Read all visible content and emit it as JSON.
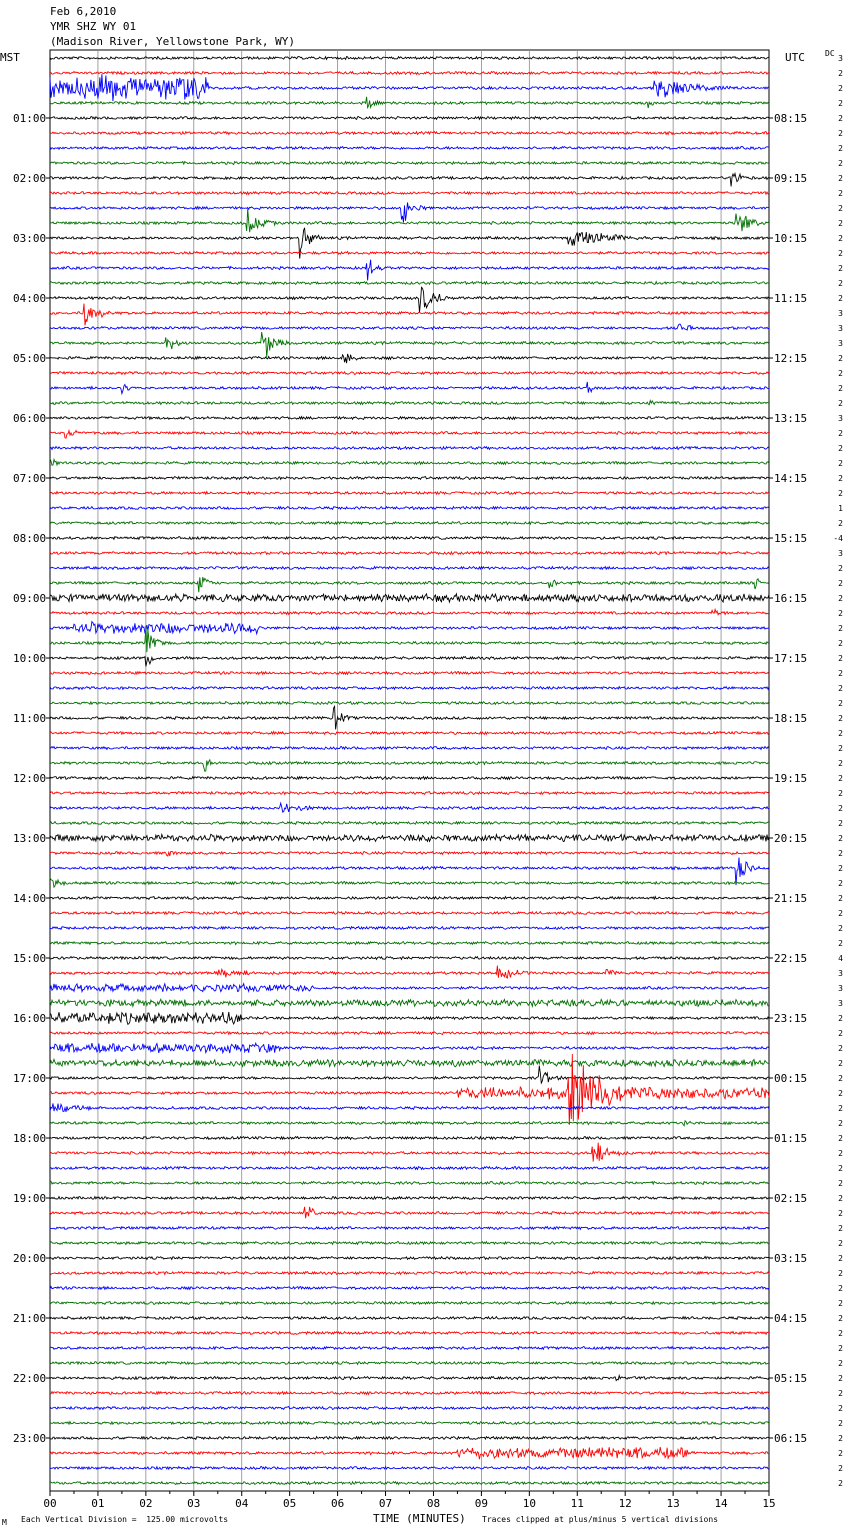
{
  "header": {
    "date": "Feb 6,2010",
    "station": "YMR SHZ WY 01",
    "location": "(Madison River, Yellowstone Park, WY)"
  },
  "labels": {
    "left_zone": "MST",
    "right_zone": "UTC",
    "dc_label": "DC",
    "x_axis_title": "TIME (MINUTES)",
    "scale_note": "Each Vertical Division =  125.00 microvolts",
    "clip_note": "Traces clipped at plus/minus 5 vertical divisions",
    "corner_mark": "M"
  },
  "chart_data": {
    "type": "line",
    "title": "YMR SHZ WY 01",
    "xlabel": "TIME (MINUTES)",
    "xlim": [
      0,
      15
    ],
    "x_ticks": [
      "00",
      "01",
      "02",
      "03",
      "04",
      "05",
      "06",
      "07",
      "08",
      "09",
      "10",
      "11",
      "12",
      "13",
      "14",
      "15"
    ],
    "trace_interval_minutes": 15,
    "trace_count": 96,
    "trace_colors": [
      "#000000",
      "#ff0000",
      "#0000ff",
      "#007000"
    ],
    "grid": true,
    "mst_labels": [
      "01:00",
      "02:00",
      "03:00",
      "04:00",
      "05:00",
      "06:00",
      "07:00",
      "08:00",
      "09:00",
      "10:00",
      "11:00",
      "12:00",
      "13:00",
      "14:00",
      "15:00",
      "16:00",
      "17:00",
      "18:00",
      "19:00",
      "20:00",
      "21:00",
      "22:00",
      "23:00"
    ],
    "utc_labels": [
      "08:15",
      "09:15",
      "10:15",
      "11:15",
      "12:15",
      "13:15",
      "14:15",
      "15:15",
      "16:15",
      "17:15",
      "18:15",
      "19:15",
      "20:15",
      "21:15",
      "22:15",
      "23:15",
      "00:15",
      "01:15",
      "02:15",
      "03:15",
      "04:15",
      "05:15",
      "06:15"
    ],
    "dc_offsets": [
      "3",
      "2",
      "2",
      "2",
      "2",
      "2",
      "2",
      "2",
      "2",
      "2",
      "2",
      "2",
      "2",
      "2",
      "2",
      "2",
      "2",
      "3",
      "3",
      "3",
      "2",
      "2",
      "2",
      "2",
      "3",
      "2",
      "2",
      "2",
      "2",
      "2",
      "1",
      "2",
      "-4",
      "3",
      "2",
      "2",
      "2",
      "2",
      "2",
      "2",
      "2",
      "2",
      "2",
      "2",
      "2",
      "2",
      "2",
      "2",
      "2",
      "2",
      "2",
      "2",
      "2",
      "2",
      "2",
      "2",
      "2",
      "2",
      "2",
      "2",
      "4",
      "3",
      "3",
      "3",
      "2",
      "2",
      "2",
      "2",
      "2",
      "2",
      "2",
      "2",
      "2",
      "2",
      "2",
      "2",
      "2",
      "2",
      "2",
      "2",
      "2",
      "2",
      "2",
      "2",
      "2",
      "2",
      "2",
      "2",
      "2",
      "2",
      "2",
      "2",
      "2",
      "2",
      "2",
      "2"
    ],
    "events": [
      {
        "trace": 2,
        "start": 0.0,
        "end": 3.3,
        "amp": 1.3
      },
      {
        "trace": 2,
        "start": 12.6,
        "end": 15.0,
        "amp": 1.6
      },
      {
        "trace": 3,
        "start": 6.6,
        "end": 7.0,
        "amp": 1.4
      },
      {
        "trace": 3,
        "start": 12.4,
        "end": 12.8,
        "amp": 1.2
      },
      {
        "trace": 8,
        "start": 14.2,
        "end": 14.7,
        "amp": 1.4
      },
      {
        "trace": 10,
        "start": 7.3,
        "end": 8.0,
        "amp": 2.2
      },
      {
        "trace": 11,
        "start": 4.1,
        "end": 5.0,
        "amp": 1.6
      },
      {
        "trace": 11,
        "start": 14.3,
        "end": 15.0,
        "amp": 2.4
      },
      {
        "trace": 12,
        "start": 5.2,
        "end": 5.8,
        "amp": 2.5
      },
      {
        "trace": 12,
        "start": 10.8,
        "end": 13.2,
        "amp": 1.3
      },
      {
        "trace": 14,
        "start": 6.6,
        "end": 7.1,
        "amp": 2.0
      },
      {
        "trace": 16,
        "start": 7.7,
        "end": 8.6,
        "amp": 2.0
      },
      {
        "trace": 17,
        "start": 0.7,
        "end": 1.4,
        "amp": 2.2
      },
      {
        "trace": 18,
        "start": 13.1,
        "end": 13.6,
        "amp": 1.3
      },
      {
        "trace": 19,
        "start": 4.4,
        "end": 5.1,
        "amp": 2.6
      },
      {
        "trace": 19,
        "start": 2.4,
        "end": 3.0,
        "amp": 1.2
      },
      {
        "trace": 20,
        "start": 6.1,
        "end": 6.8,
        "amp": 0.9
      },
      {
        "trace": 22,
        "start": 11.2,
        "end": 11.6,
        "amp": 0.9
      },
      {
        "trace": 22,
        "start": 1.5,
        "end": 1.9,
        "amp": 0.8
      },
      {
        "trace": 23,
        "start": 12.5,
        "end": 12.9,
        "amp": 0.8
      },
      {
        "trace": 25,
        "start": 0.3,
        "end": 1.0,
        "amp": 0.7
      },
      {
        "trace": 27,
        "start": 0.0,
        "end": 1.0,
        "amp": 0.5
      },
      {
        "trace": 35,
        "start": 3.1,
        "end": 3.7,
        "amp": 1.3
      },
      {
        "trace": 35,
        "start": 10.4,
        "end": 10.9,
        "amp": 1.2
      },
      {
        "trace": 35,
        "start": 14.7,
        "end": 15.0,
        "amp": 1.2
      },
      {
        "trace": 36,
        "start": 0.0,
        "end": 15.0,
        "amp": 0.4
      },
      {
        "trace": 37,
        "start": 13.8,
        "end": 14.6,
        "amp": 0.6
      },
      {
        "trace": 38,
        "start": 0.5,
        "end": 4.4,
        "amp": 0.6
      },
      {
        "trace": 39,
        "start": 2.0,
        "end": 2.5,
        "amp": 2.5
      },
      {
        "trace": 40,
        "start": 2.0,
        "end": 2.4,
        "amp": 1.4
      },
      {
        "trace": 44,
        "start": 5.9,
        "end": 6.5,
        "amp": 1.6
      },
      {
        "trace": 47,
        "start": 3.2,
        "end": 3.6,
        "amp": 1.5
      },
      {
        "trace": 50,
        "start": 4.8,
        "end": 6.5,
        "amp": 0.8
      },
      {
        "trace": 52,
        "start": 0.0,
        "end": 15.0,
        "amp": 0.35
      },
      {
        "trace": 53,
        "start": 2.4,
        "end": 3.2,
        "amp": 0.6
      },
      {
        "trace": 54,
        "start": 14.3,
        "end": 15.0,
        "amp": 1.8
      },
      {
        "trace": 55,
        "start": 0.0,
        "end": 1.0,
        "amp": 0.7
      },
      {
        "trace": 61,
        "start": 3.5,
        "end": 5.3,
        "amp": 0.6
      },
      {
        "trace": 61,
        "start": 9.3,
        "end": 10.8,
        "amp": 0.8
      },
      {
        "trace": 61,
        "start": 11.6,
        "end": 12.9,
        "amp": 0.4
      },
      {
        "trace": 62,
        "start": 0.0,
        "end": 5.5,
        "amp": 0.4
      },
      {
        "trace": 63,
        "start": 0.0,
        "end": 15.0,
        "amp": 0.35
      },
      {
        "trace": 64,
        "start": 0.0,
        "end": 4.0,
        "amp": 0.6
      },
      {
        "trace": 66,
        "start": 0.0,
        "end": 4.8,
        "amp": 0.5
      },
      {
        "trace": 67,
        "start": 0.0,
        "end": 15.0,
        "amp": 0.35
      },
      {
        "trace": 68,
        "start": 10.2,
        "end": 11.0,
        "amp": 1.3
      },
      {
        "trace": 69,
        "start": 8.5,
        "end": 15.0,
        "amp": 0.6
      },
      {
        "trace": 69,
        "start": 10.8,
        "end": 12.8,
        "amp": 5.0
      },
      {
        "trace": 70,
        "start": 0.0,
        "end": 2.5,
        "amp": 0.6
      },
      {
        "trace": 71,
        "start": 13.2,
        "end": 13.6,
        "amp": 0.8
      },
      {
        "trace": 73,
        "start": 11.3,
        "end": 12.3,
        "amp": 1.5
      },
      {
        "trace": 77,
        "start": 5.3,
        "end": 5.9,
        "amp": 1.3
      },
      {
        "trace": 93,
        "start": 8.5,
        "end": 13.3,
        "amp": 0.6
      },
      {
        "trace": 88,
        "start": 11.8,
        "end": 12.1,
        "amp": 0.6
      }
    ]
  }
}
